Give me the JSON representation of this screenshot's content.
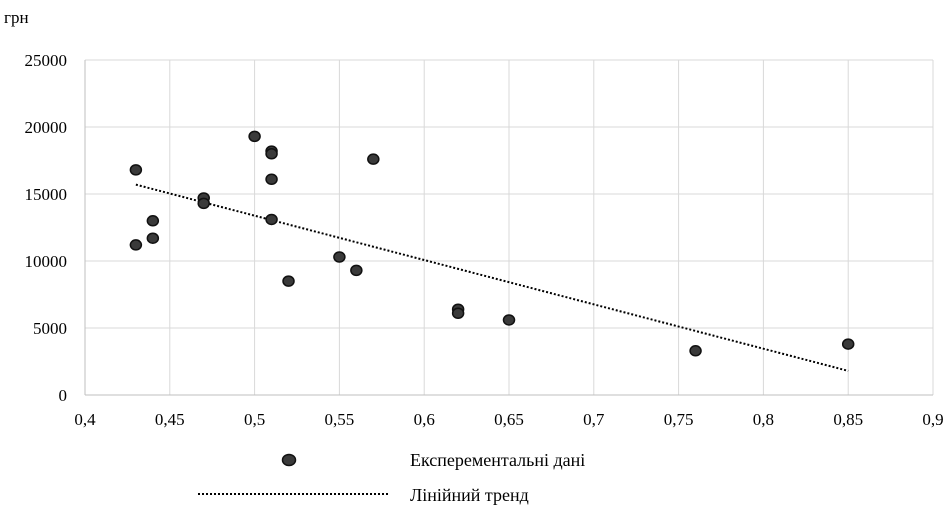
{
  "chart_data": {
    "type": "scatter",
    "ylabel": "грн",
    "xlim": [
      0.4,
      0.9
    ],
    "ylim": [
      0,
      25000
    ],
    "x_ticks": [
      "0,4",
      "0,45",
      "0,5",
      "0,55",
      "0,6",
      "0,65",
      "0,7",
      "0,75",
      "0,8",
      "0,85",
      "0,9"
    ],
    "y_ticks": [
      "0",
      "5000",
      "10000",
      "15000",
      "20000",
      "25000"
    ],
    "grid": true,
    "legend_position": "bottom",
    "series": [
      {
        "name": "Експерементальні дані",
        "type": "scatter",
        "color": "#3a3a3a",
        "points": [
          [
            0.43,
            16800
          ],
          [
            0.43,
            11200
          ],
          [
            0.44,
            13000
          ],
          [
            0.44,
            11700
          ],
          [
            0.47,
            14700
          ],
          [
            0.47,
            14300
          ],
          [
            0.5,
            19300
          ],
          [
            0.51,
            18200
          ],
          [
            0.51,
            18000
          ],
          [
            0.51,
            16100
          ],
          [
            0.51,
            13100
          ],
          [
            0.52,
            8500
          ],
          [
            0.55,
            10300
          ],
          [
            0.56,
            9300
          ],
          [
            0.57,
            17600
          ],
          [
            0.62,
            6400
          ],
          [
            0.62,
            6100
          ],
          [
            0.65,
            5600
          ],
          [
            0.76,
            3300
          ],
          [
            0.85,
            3800
          ]
        ]
      },
      {
        "name": "Лінійний тренд",
        "type": "line",
        "style": "dotted",
        "color": "#000000",
        "points": [
          [
            0.43,
            15700
          ],
          [
            0.85,
            1800
          ]
        ]
      }
    ]
  }
}
